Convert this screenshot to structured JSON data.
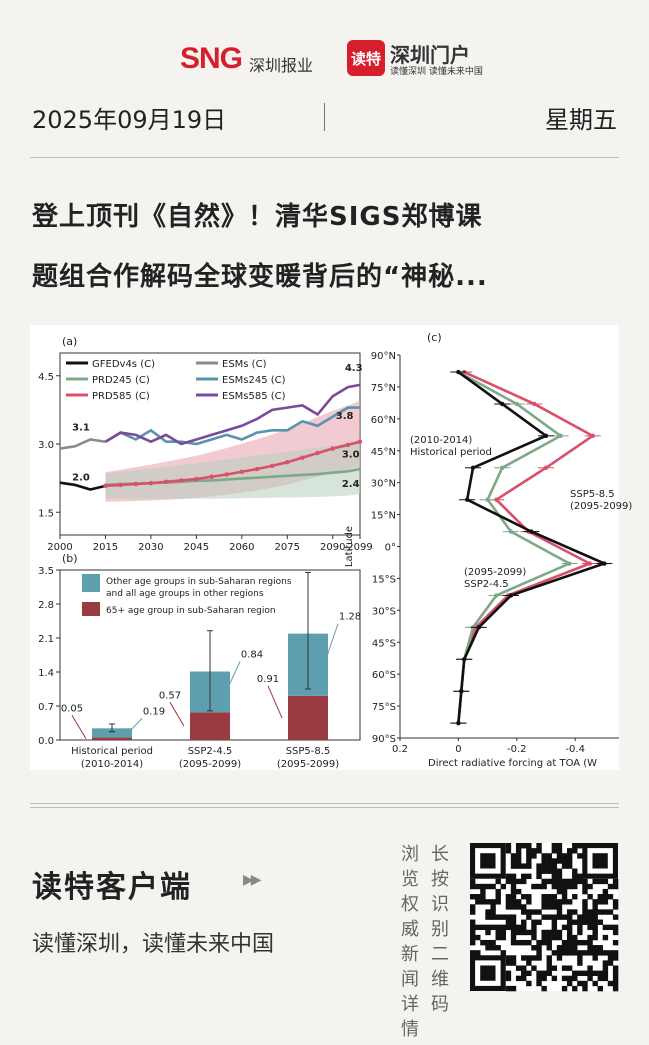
{
  "header": {
    "brand_sng": "SNG",
    "brand_sng_sub": "深圳报业",
    "brand_dute_icon": "读特",
    "brand_dute_name": "深圳门户",
    "brand_dute_slogan": "读懂深圳 读懂未来中国"
  },
  "dateline": {
    "date": "2025年09月19日",
    "weekday": "星期五"
  },
  "article": {
    "title_line1": "登上顶刊《自然》！清华SIGS郑博课",
    "title_line2": "题组合作解码全球变暖背后的“神秘..."
  },
  "chart_data": [
    {
      "type": "line",
      "panel": "(a)",
      "x": [
        2000,
        2005,
        2010,
        2015,
        2020,
        2025,
        2030,
        2035,
        2040,
        2045,
        2050,
        2055,
        2060,
        2065,
        2070,
        2075,
        2080,
        2085,
        2090,
        2095,
        2099
      ],
      "xticks": [
        "2000",
        "2015",
        "2030",
        "2045",
        "2060",
        "2075",
        "2090",
        "2099"
      ],
      "yticks": [
        "1.5",
        "3.0",
        "4.5"
      ],
      "ylim": [
        1.0,
        5.0
      ],
      "series": [
        {
          "name": "GFEDv4s (C)",
          "color": "#111111",
          "values": [
            2.15,
            2.1,
            2.0,
            2.08,
            null,
            null,
            null,
            null,
            null,
            null,
            null,
            null,
            null,
            null,
            null,
            null,
            null,
            null,
            null,
            null,
            null
          ]
        },
        {
          "name": "ESMs (C)",
          "color": "#8a8a8a",
          "values": [
            2.9,
            2.95,
            3.1,
            3.05,
            null,
            null,
            null,
            null,
            null,
            null,
            null,
            null,
            null,
            null,
            null,
            null,
            null,
            null,
            null,
            null,
            null
          ]
        },
        {
          "name": "PRD245 (C)",
          "color": "#7fa886",
          "values": [
            null,
            null,
            null,
            2.1,
            2.12,
            2.13,
            2.14,
            2.15,
            2.17,
            2.19,
            2.2,
            2.22,
            2.24,
            2.26,
            2.28,
            2.3,
            2.32,
            2.34,
            2.37,
            2.4,
            2.45
          ]
        },
        {
          "name": "ESMs245 (C)",
          "color": "#5a93ad",
          "values": [
            null,
            null,
            null,
            3.05,
            3.25,
            3.1,
            3.3,
            3.05,
            3.05,
            3.0,
            3.1,
            3.2,
            3.1,
            3.25,
            3.3,
            3.3,
            3.5,
            3.4,
            3.6,
            3.8,
            3.8
          ]
        },
        {
          "name": "PRD585 (C)",
          "color": "#d9506a",
          "values": [
            null,
            null,
            null,
            2.08,
            2.1,
            2.12,
            2.14,
            2.17,
            2.2,
            2.23,
            2.28,
            2.33,
            2.39,
            2.45,
            2.52,
            2.6,
            2.7,
            2.8,
            2.9,
            2.98,
            3.05
          ]
        },
        {
          "name": "ESMs585 (C)",
          "color": "#7b4a9e",
          "values": [
            null,
            null,
            null,
            3.05,
            3.25,
            3.2,
            3.05,
            3.2,
            3.0,
            3.1,
            3.2,
            3.3,
            3.4,
            3.55,
            3.75,
            3.8,
            3.85,
            3.65,
            4.05,
            4.25,
            4.3
          ]
        }
      ],
      "annotations": [
        "3.1",
        "2.0",
        "4.3",
        "3.8",
        "3.0",
        "2.4"
      ]
    },
    {
      "type": "bar",
      "panel": "(b)",
      "categories": [
        "Historical period\n(2010-2014)",
        "SSP2-4.5\n(2095-2099)",
        "SSP5-8.5\n(2095-2099)"
      ],
      "category_lines": [
        [
          "Historical period",
          "(2010-2014)"
        ],
        [
          "SSP2-4.5",
          "(2095-2099)"
        ],
        [
          "SSP5-8.5",
          "(2095-2099)"
        ]
      ],
      "yticks": [
        "0.0",
        "0.7",
        "1.4",
        "2.1",
        "2.8",
        "3.5"
      ],
      "ylim": [
        0,
        3.5
      ],
      "series": [
        {
          "name": "65+ age group in sub-Saharan region",
          "color": "#9a3a41",
          "values": [
            0.05,
            0.57,
            0.91
          ]
        },
        {
          "name_lines": [
            "Other age groups in sub-Saharan regions",
            "and all age groups in other regions"
          ],
          "color": "#5d9fae",
          "values": [
            0.19,
            0.84,
            1.28
          ]
        }
      ],
      "error_bars": [
        [
          0.17,
          0.33
        ],
        [
          0.6,
          2.25
        ],
        [
          1.05,
          3.45
        ]
      ],
      "data_labels": [
        "0.05",
        "0.19",
        "0.57",
        "0.84",
        "0.91",
        "1.28"
      ]
    },
    {
      "type": "line",
      "panel": "(c)",
      "orientation": "horizontal",
      "xlabel": "Direct radiative forcing at TOA (W",
      "ylabel": "Latitude",
      "xticks": [
        "0.2",
        "0",
        "-0.2",
        "-0.4"
      ],
      "xlim": [
        0.2,
        -0.55
      ],
      "yticks": [
        "90°N",
        "75°N",
        "60°N",
        "45°N",
        "30°N",
        "15°N",
        "0°",
        "15°S",
        "30°S",
        "45°S",
        "60°S",
        "75°S",
        "90°S"
      ],
      "latitudes": [
        82,
        67,
        52,
        37,
        22,
        7,
        -8,
        -23,
        -38,
        -53,
        -68,
        -83
      ],
      "series": [
        {
          "name": "(2010-2014) Historical period",
          "color": "#111111",
          "values": [
            0.0,
            -0.15,
            -0.3,
            -0.05,
            -0.03,
            -0.25,
            -0.5,
            -0.18,
            -0.07,
            -0.02,
            -0.01,
            0.0
          ]
        },
        {
          "name": "(2095-2099) SSP2-4.5",
          "color": "#7fa886",
          "values": [
            0.0,
            -0.2,
            -0.35,
            -0.15,
            -0.1,
            -0.18,
            -0.38,
            -0.13,
            -0.05,
            -0.02,
            -0.01,
            0.0
          ]
        },
        {
          "name": "SSP5-8.5 (2095-2099)",
          "color": "#d9506a",
          "values": [
            -0.02,
            -0.26,
            -0.46,
            -0.3,
            -0.13,
            -0.24,
            -0.45,
            -0.17,
            -0.06,
            -0.02,
            -0.01,
            0.0
          ]
        }
      ],
      "legend_lines": {
        "hist": [
          "(2010-2014)",
          "Historical period"
        ],
        "ssp2": [
          "(2095-2099)",
          "SSP2-4.5"
        ],
        "ssp5": [
          "SSP5-8.5",
          "(2095-2099)"
        ]
      }
    }
  ],
  "footer": {
    "app_name": "读特客户端",
    "app_arrows": "▶▶",
    "app_slogan": "读懂深圳，读懂未来中国",
    "vertical_right": "长按识别二维码",
    "vertical_left": "浏览权威新闻详情"
  }
}
